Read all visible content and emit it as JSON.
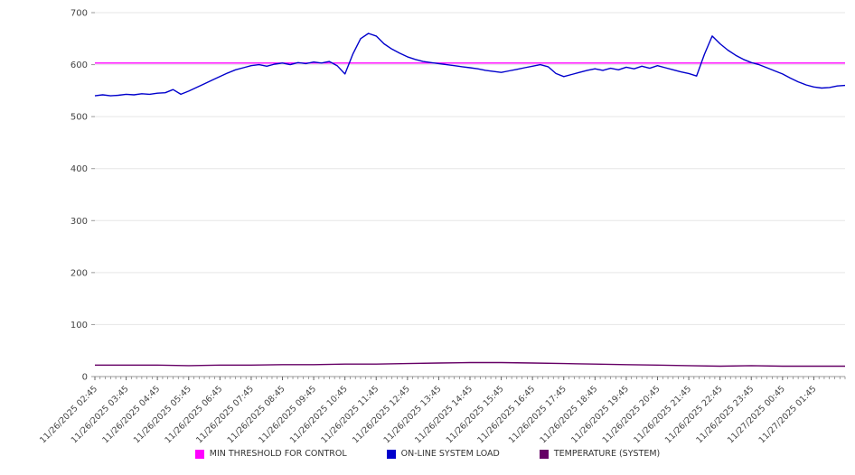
{
  "chart_data": {
    "type": "line",
    "title": "",
    "xlabel": "",
    "ylabel": "",
    "ylim": [
      0,
      700
    ],
    "yticks": [
      0,
      100,
      200,
      300,
      400,
      500,
      600,
      700
    ],
    "x_domain": [
      0,
      1440
    ],
    "x_tick_step_minutes": 60,
    "x_minor_tick_step_minutes": 10,
    "grid": true,
    "legend_position": "bottom",
    "x_tick_labels": [
      "11/26/2025 02:45",
      "11/26/2025 03:45",
      "11/26/2025 04:45",
      "11/26/2025 05:45",
      "11/26/2025 06:45",
      "11/26/2025 07:45",
      "11/26/2025 08:45",
      "11/26/2025 09:45",
      "11/26/2025 10:45",
      "11/26/2025 11:45",
      "11/26/2025 12:45",
      "11/26/2025 13:45",
      "11/26/2025 14:45",
      "11/26/2025 15:45",
      "11/26/2025 16:45",
      "11/26/2025 17:45",
      "11/26/2025 18:45",
      "11/26/2025 19:45",
      "11/26/2025 20:45",
      "11/26/2025 21:45",
      "11/26/2025 22:45",
      "11/26/2025 23:45",
      "11/27/2025 00:45",
      "11/27/2025 01:45"
    ],
    "series": [
      {
        "name": "MIN THRESHOLD FOR CONTROL",
        "color": "#ff00ff",
        "x": [
          0,
          1440
        ],
        "values": [
          603,
          603
        ]
      },
      {
        "name": "ON-LINE SYSTEM LOAD",
        "color": "#0000cc",
        "x_start": 0,
        "x_step": 15,
        "values": [
          540,
          542,
          540,
          541,
          543,
          542,
          544,
          543,
          545,
          546,
          552,
          543,
          549,
          556,
          563,
          570,
          577,
          584,
          590,
          594,
          598,
          600,
          597,
          601,
          603,
          600,
          604,
          602,
          605,
          603,
          606,
          598,
          582,
          620,
          650,
          660,
          655,
          640,
          630,
          622,
          615,
          610,
          606,
          604,
          602,
          600,
          598,
          596,
          594,
          592,
          589,
          587,
          585,
          588,
          591,
          594,
          597,
          600,
          596,
          583,
          577,
          581,
          585,
          589,
          592,
          589,
          593,
          590,
          595,
          592,
          597,
          593,
          598,
          594,
          590,
          586,
          583,
          578,
          620,
          655,
          640,
          628,
          618,
          610,
          604,
          600,
          594,
          588,
          582,
          574,
          567,
          561,
          557,
          555,
          556,
          559,
          560
        ]
      },
      {
        "name": "TEMPERATURE (SYSTEM)",
        "color": "#660066",
        "x_start": 0,
        "x_step": 60,
        "values": [
          22,
          22,
          22,
          21,
          22,
          22,
          23,
          23,
          24,
          24,
          25,
          26,
          27,
          27,
          26,
          25,
          24,
          23,
          22,
          21,
          20,
          21,
          20,
          20,
          20
        ]
      }
    ]
  }
}
